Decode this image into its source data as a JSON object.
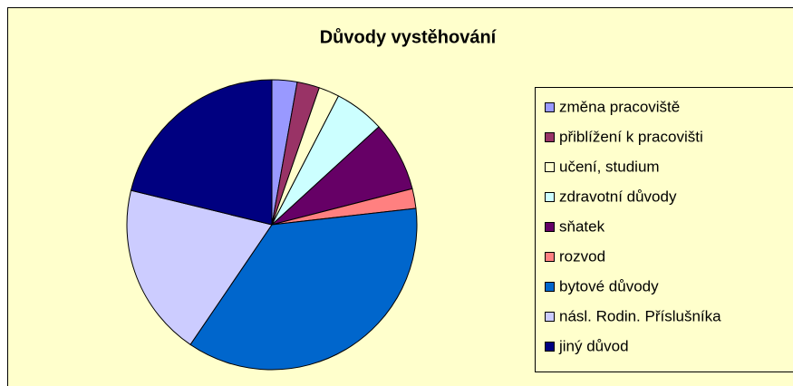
{
  "chart_data": {
    "type": "pie",
    "title": "Důvody vystěhování",
    "categories": [
      "změna pracoviště",
      "přiblížení k pracovišti",
      "učení, studium",
      "zdravotní důvody",
      "sňatek",
      "rozvod",
      "bytové důvody",
      "násl. Rodin. Příslušníka",
      "jiný důvod"
    ],
    "values": [
      2.8,
      2.5,
      2.3,
      5.6,
      7.8,
      2.2,
      36.3,
      19.3,
      21.2
    ],
    "colors": [
      "#9999FF",
      "#993366",
      "#FFFFCC",
      "#CCFFFF",
      "#660066",
      "#FF8080",
      "#0066CC",
      "#CCCCFF",
      "#000080"
    ],
    "legend": "right"
  }
}
